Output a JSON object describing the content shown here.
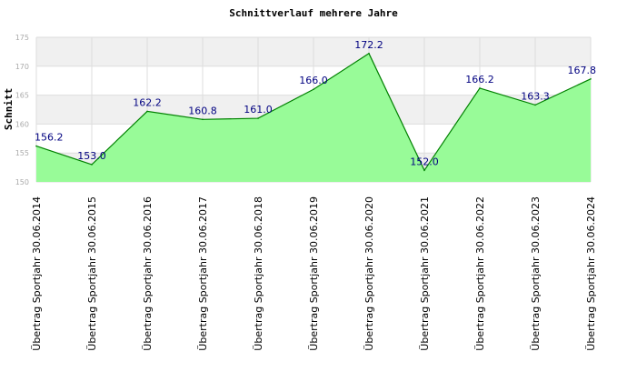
{
  "chart_data": {
    "type": "area",
    "title": "Schnittverlauf mehrere Jahre",
    "xlabel": "",
    "ylabel": "Schnitt",
    "ylim": [
      150,
      175
    ],
    "yticks": [
      150,
      155,
      160,
      165,
      170,
      175
    ],
    "grid": true,
    "legend": "none",
    "categories": [
      "Übertrag Sportjahr 30.06.2014",
      "Übertrag Sportjahr 30.06.2015",
      "Übertrag Sportjahr 30.06.2016",
      "Übertrag Sportjahr 30.06.2017",
      "Übertrag Sportjahr 30.06.2018",
      "Übertrag Sportjahr 30.06.2019",
      "Übertrag Sportjahr 30.06.2020",
      "Übertrag Sportjahr 30.06.2021",
      "Übertrag Sportjahr 30.06.2022",
      "Übertrag Sportjahr 30.06.2023",
      "Übertrag Sportjahr 30.06.2024"
    ],
    "values": [
      156.2,
      153.0,
      162.2,
      160.8,
      161.0,
      166.0,
      172.2,
      152.0,
      166.2,
      163.3,
      167.8
    ],
    "data_labels": [
      "156.2",
      "153.0",
      "162.2",
      "160.8",
      "161.0",
      "166.0",
      "172.2",
      "152.0",
      "166.2",
      "163.3",
      "167.8"
    ],
    "colors": {
      "fill": "#98fb98",
      "line": "#008000",
      "label": "#000080",
      "band": "#f0f0f0",
      "grid": "#dddddd",
      "tick": "#aaaaaa"
    }
  }
}
